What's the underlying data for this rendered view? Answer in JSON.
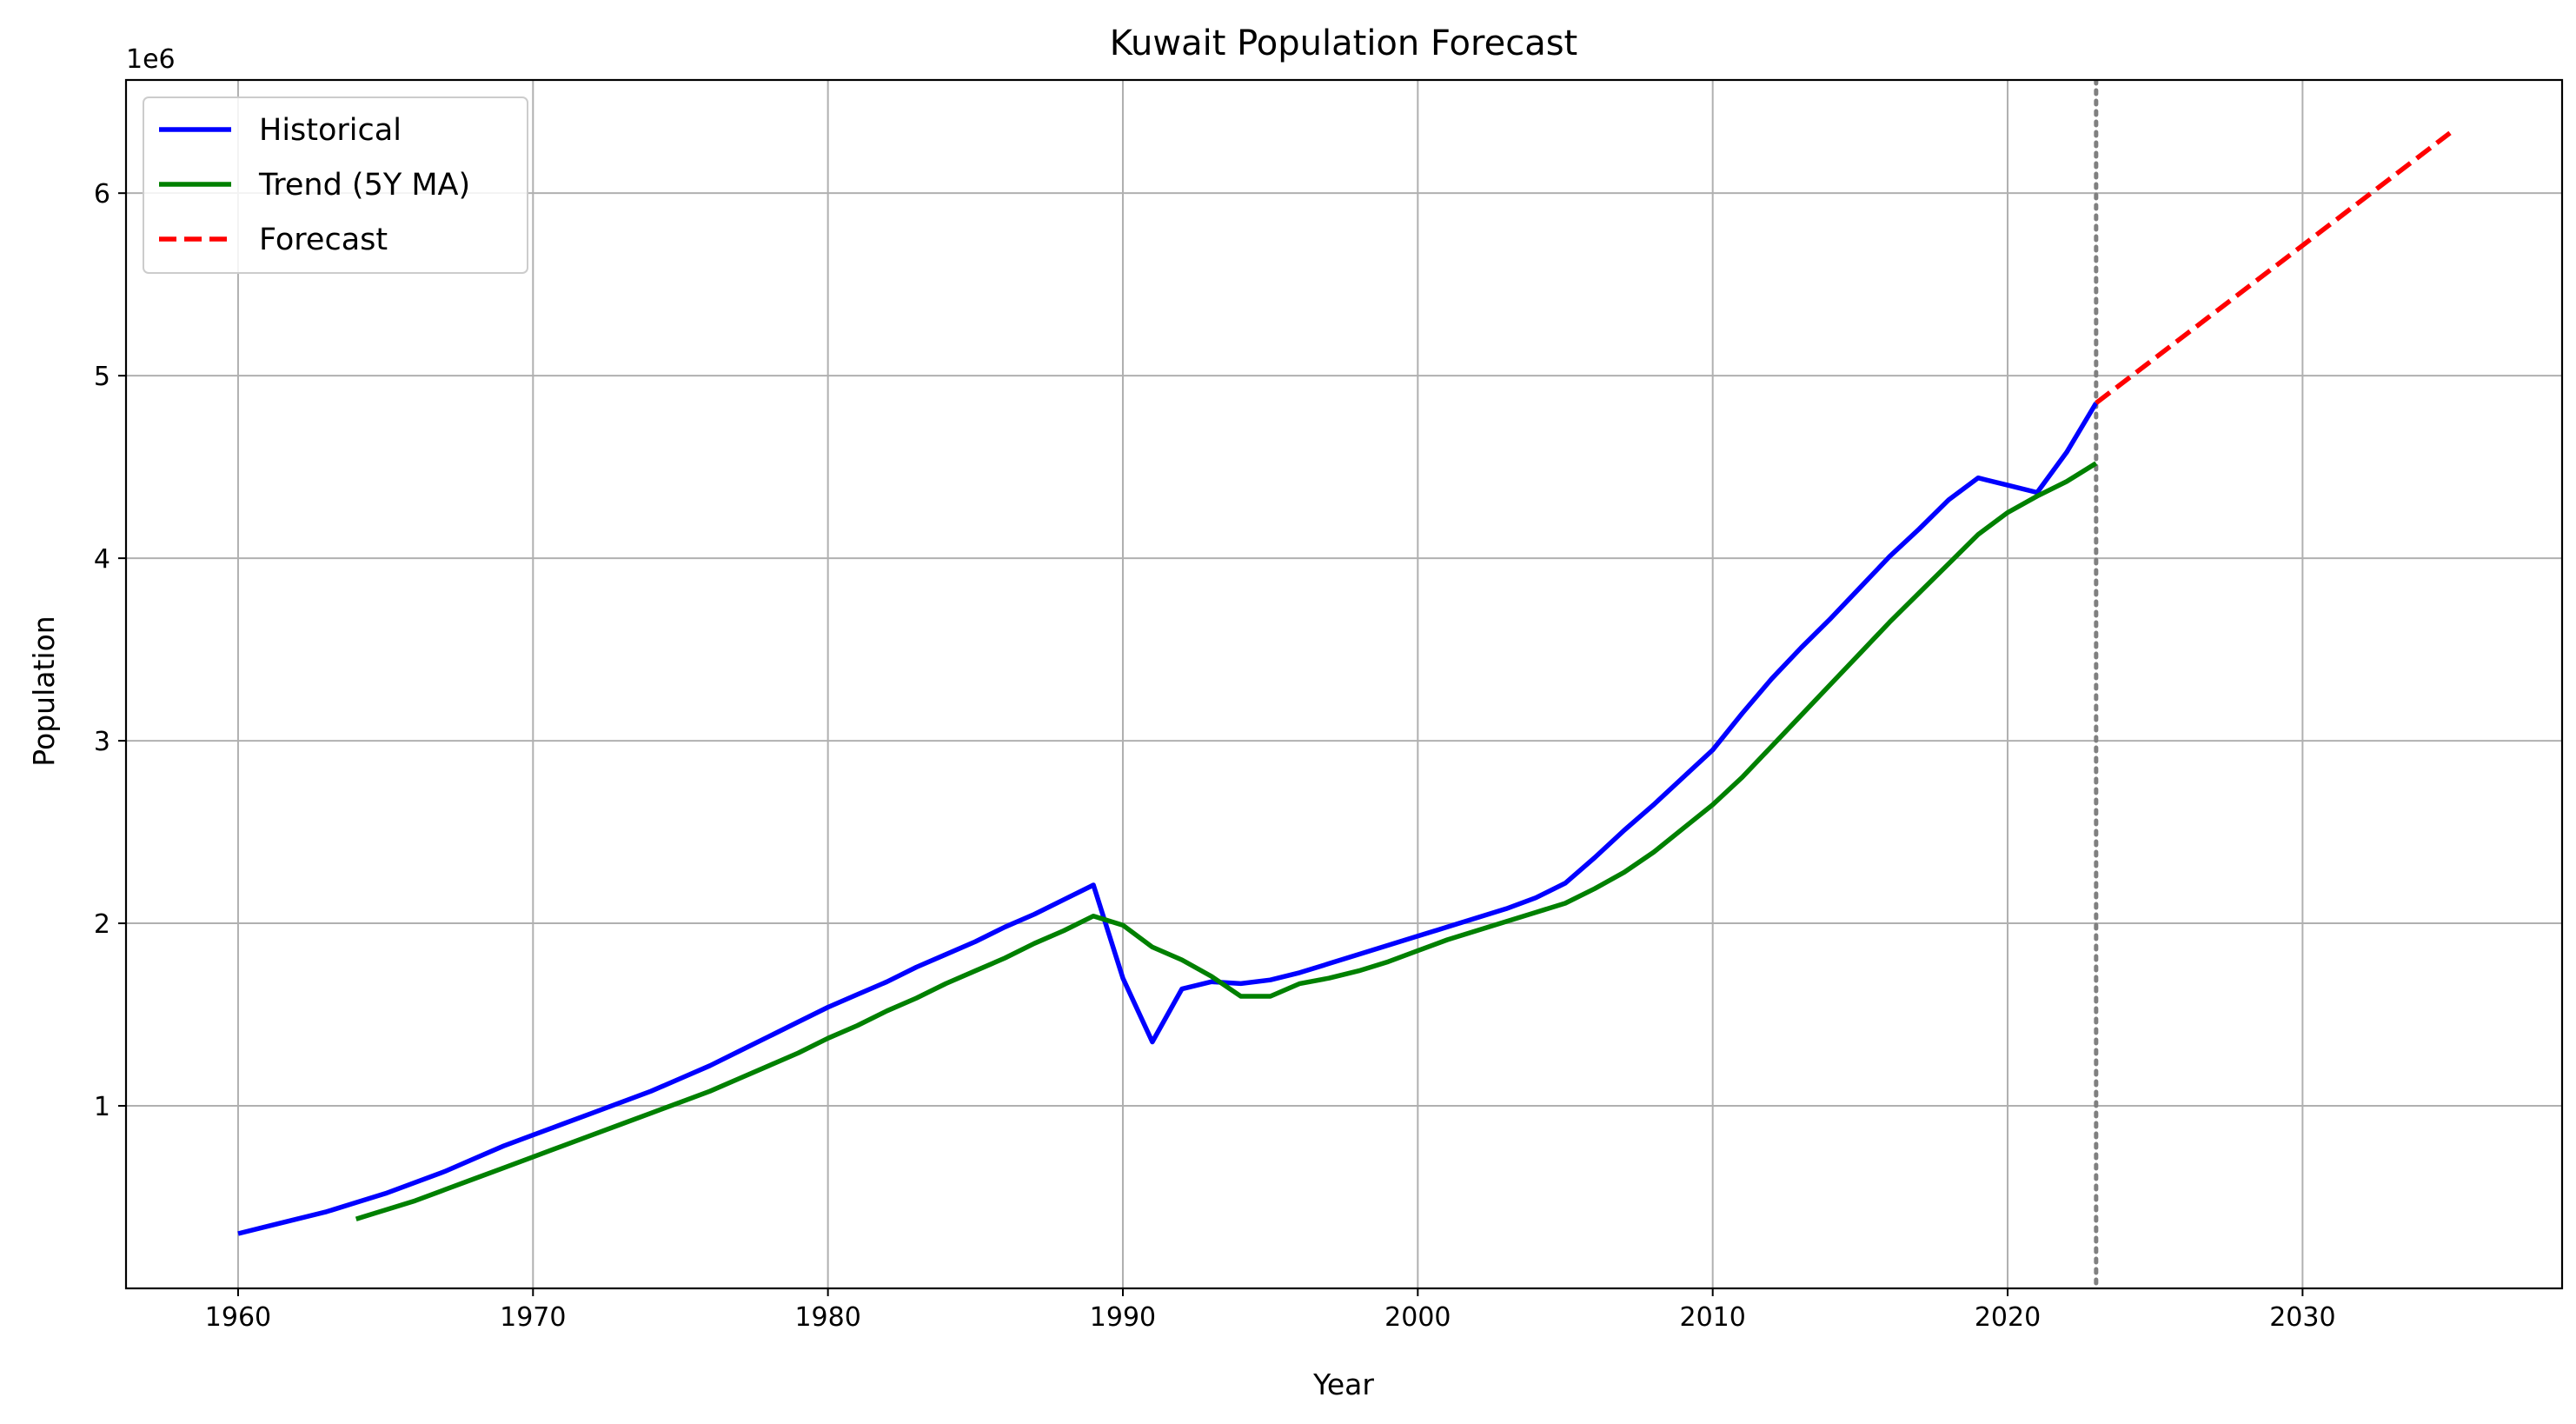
{
  "chart_data": {
    "type": "line",
    "title": "Kuwait Population Forecast",
    "xlabel": "Year",
    "ylabel": "Population",
    "offset_label": "1e6",
    "xlim": [
      1956.2,
      2038.8
    ],
    "ylim": [
      0.0,
      6.62
    ],
    "x_ticks": [
      1960,
      1970,
      1980,
      1990,
      2000,
      2010,
      2020,
      2030
    ],
    "y_ticks": [
      1,
      2,
      3,
      4,
      5,
      6
    ],
    "grid": true,
    "legend_position": "top-left",
    "forecast_start": 2023,
    "series": [
      {
        "name": "Historical",
        "color": "#0000ff",
        "style": "solid",
        "x": [
          1960,
          1961,
          1962,
          1963,
          1964,
          1965,
          1966,
          1967,
          1968,
          1969,
          1970,
          1971,
          1972,
          1973,
          1974,
          1975,
          1976,
          1977,
          1978,
          1979,
          1980,
          1981,
          1982,
          1983,
          1984,
          1985,
          1986,
          1987,
          1988,
          1989,
          1990,
          1991,
          1992,
          1993,
          1994,
          1995,
          1996,
          1997,
          1998,
          1999,
          2000,
          2001,
          2002,
          2003,
          2004,
          2005,
          2006,
          2007,
          2008,
          2009,
          2010,
          2011,
          2012,
          2013,
          2014,
          2015,
          2016,
          2017,
          2018,
          2019,
          2020,
          2021,
          2022,
          2023
        ],
        "y": [
          0.3,
          0.34,
          0.38,
          0.42,
          0.47,
          0.52,
          0.58,
          0.64,
          0.71,
          0.78,
          0.84,
          0.9,
          0.96,
          1.02,
          1.08,
          1.15,
          1.22,
          1.3,
          1.38,
          1.46,
          1.54,
          1.61,
          1.68,
          1.76,
          1.83,
          1.9,
          1.98,
          2.05,
          2.13,
          2.21,
          1.7,
          1.35,
          1.64,
          1.68,
          1.67,
          1.69,
          1.73,
          1.78,
          1.83,
          1.88,
          1.93,
          1.98,
          2.03,
          2.08,
          2.14,
          2.22,
          2.36,
          2.51,
          2.65,
          2.8,
          2.95,
          3.15,
          3.34,
          3.51,
          3.67,
          3.84,
          4.01,
          4.16,
          4.32,
          4.44,
          4.4,
          4.36,
          4.58,
          4.85
        ]
      },
      {
        "name": "Trend (5Y MA)",
        "color": "#008000",
        "style": "solid",
        "x": [
          1964,
          1965,
          1966,
          1967,
          1968,
          1969,
          1970,
          1971,
          1972,
          1973,
          1974,
          1975,
          1976,
          1977,
          1978,
          1979,
          1980,
          1981,
          1982,
          1983,
          1984,
          1985,
          1986,
          1987,
          1988,
          1989,
          1990,
          1991,
          1992,
          1993,
          1994,
          1995,
          1996,
          1997,
          1998,
          1999,
          2000,
          2001,
          2002,
          2003,
          2004,
          2005,
          2006,
          2007,
          2008,
          2009,
          2010,
          2011,
          2012,
          2013,
          2014,
          2015,
          2016,
          2017,
          2018,
          2019,
          2020,
          2021,
          2022,
          2023
        ],
        "y": [
          0.38,
          0.43,
          0.48,
          0.54,
          0.6,
          0.66,
          0.72,
          0.78,
          0.84,
          0.9,
          0.96,
          1.02,
          1.08,
          1.15,
          1.22,
          1.29,
          1.37,
          1.44,
          1.52,
          1.59,
          1.67,
          1.74,
          1.81,
          1.89,
          1.96,
          2.04,
          1.99,
          1.87,
          1.8,
          1.71,
          1.6,
          1.6,
          1.67,
          1.7,
          1.74,
          1.79,
          1.85,
          1.91,
          1.96,
          2.01,
          2.06,
          2.11,
          2.19,
          2.28,
          2.39,
          2.52,
          2.65,
          2.8,
          2.97,
          3.14,
          3.31,
          3.48,
          3.65,
          3.81,
          3.97,
          4.13,
          4.25,
          4.34,
          4.42,
          4.52
        ]
      },
      {
        "name": "Forecast",
        "color": "#ff0000",
        "style": "dashed",
        "x": [
          2023,
          2035
        ],
        "y": [
          4.85,
          6.33
        ]
      }
    ]
  }
}
